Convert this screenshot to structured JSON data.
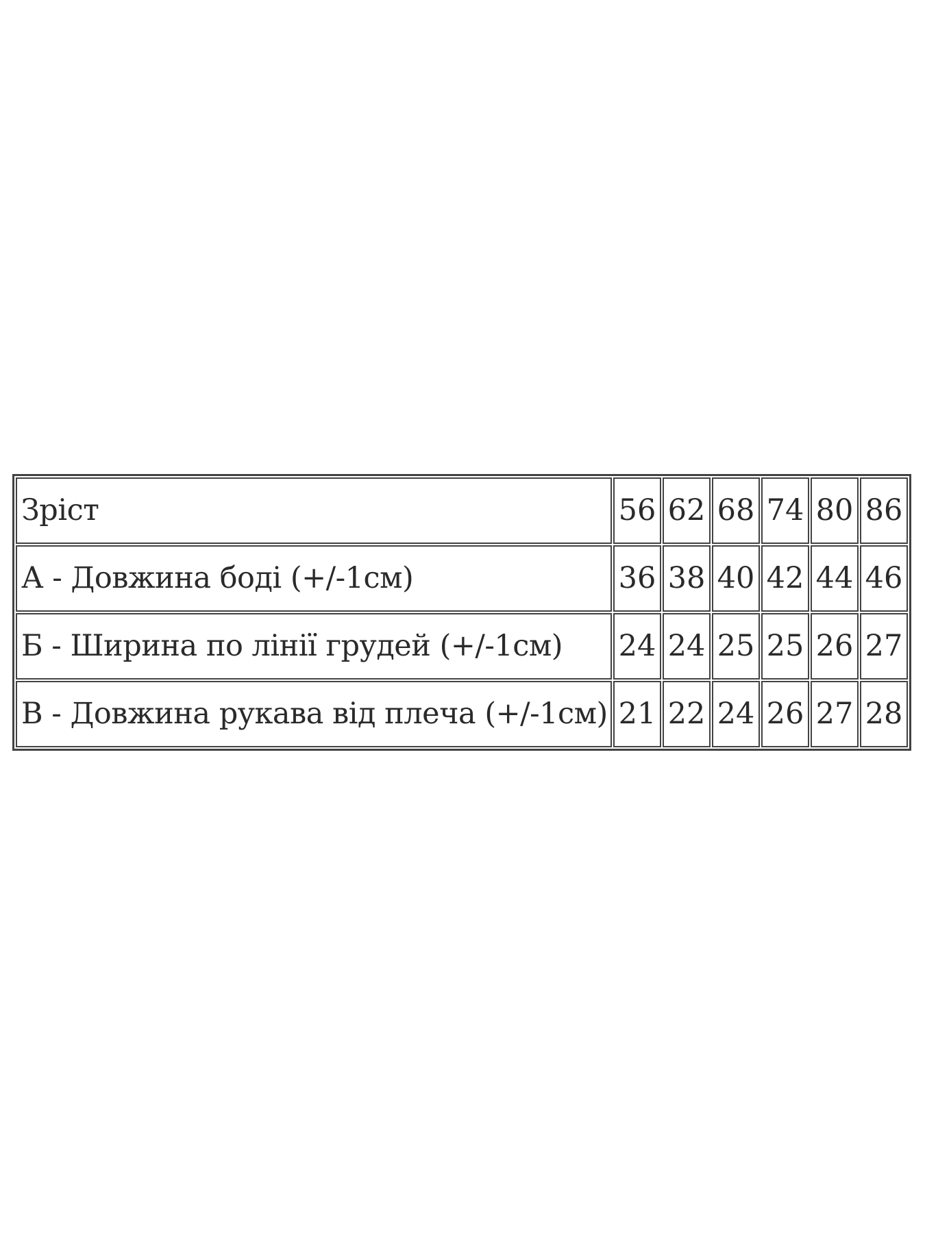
{
  "colors": {
    "background": "#ffffff",
    "border": "#424242",
    "text": "#2a2a2a"
  },
  "chart_data": {
    "type": "table",
    "description": "Garment size chart (bodysuit measurements in cm, Ukrainian)",
    "header": {
      "label": "Зріст",
      "values": [
        "56",
        "62",
        "68",
        "74",
        "80",
        "86"
      ]
    },
    "rows": [
      {
        "label": "А - Довжина боді (+/-1см)",
        "values": [
          "36",
          "38",
          "40",
          "42",
          "44",
          "46"
        ]
      },
      {
        "label": "Б - Ширина по лінії грудей (+/-1см)",
        "values": [
          "24",
          "24",
          "25",
          "25",
          "26",
          "27"
        ]
      },
      {
        "label": "В - Довжина рукава від плеча (+/-1см)",
        "values": [
          "21",
          "22",
          "24",
          "26",
          "27",
          "28"
        ]
      }
    ]
  }
}
